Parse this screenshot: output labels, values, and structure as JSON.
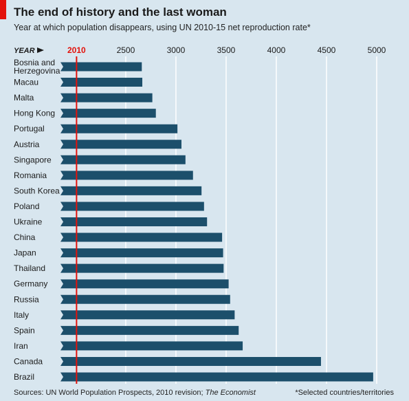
{
  "header": {
    "title": "The end of history and the last woman",
    "subtitle": "Year at which population disappears, using UN 2010-15 net reproduction rate*"
  },
  "footer": {
    "source_prefix": "Sources: UN World Population Prospects, 2010 revision; ",
    "source_italic": "The Economist",
    "note": "*Selected countries/territories"
  },
  "colors": {
    "background": "#d8e6ef",
    "bar": "#1c4f6b",
    "reference_line": "#e3120b",
    "grid": "#ffffff",
    "text": "#222222"
  },
  "chart_data": {
    "type": "bar",
    "orientation": "horizontal",
    "axis_label": "YEAR",
    "xlim": [
      1850,
      5000
    ],
    "ticks": [
      2500,
      3000,
      3500,
      4000,
      4500,
      5000
    ],
    "reference_value": 2010,
    "grid": true,
    "categories": [
      "Bosnia and Herzegovina",
      "Macau",
      "Malta",
      "Hong Kong",
      "Portugal",
      "Austria",
      "Singapore",
      "Romania",
      "South Korea",
      "Poland",
      "Ukraine",
      "China",
      "Japan",
      "Thailand",
      "Germany",
      "Russia",
      "Italy",
      "Spain",
      "Iran",
      "Canada",
      "Brazil"
    ],
    "category_lines": [
      [
        "Bosnia and",
        "Herzegovina"
      ],
      [
        "Macau"
      ],
      [
        "Malta"
      ],
      [
        "Hong Kong"
      ],
      [
        "Portugal"
      ],
      [
        "Austria"
      ],
      [
        "Singapore"
      ],
      [
        "Romania"
      ],
      [
        "South Korea"
      ],
      [
        "Poland"
      ],
      [
        "Ukraine"
      ],
      [
        "China"
      ],
      [
        "Japan"
      ],
      [
        "Thailand"
      ],
      [
        "Germany"
      ],
      [
        "Russia"
      ],
      [
        "Italy"
      ],
      [
        "Spain"
      ],
      [
        "Iran"
      ],
      [
        "Canada"
      ],
      [
        "Brazil"
      ]
    ],
    "values": [
      2660,
      2665,
      2765,
      2800,
      3015,
      3055,
      3095,
      3170,
      3255,
      3280,
      3310,
      3460,
      3470,
      3475,
      3525,
      3540,
      3585,
      3625,
      3665,
      4445,
      4965
    ]
  }
}
